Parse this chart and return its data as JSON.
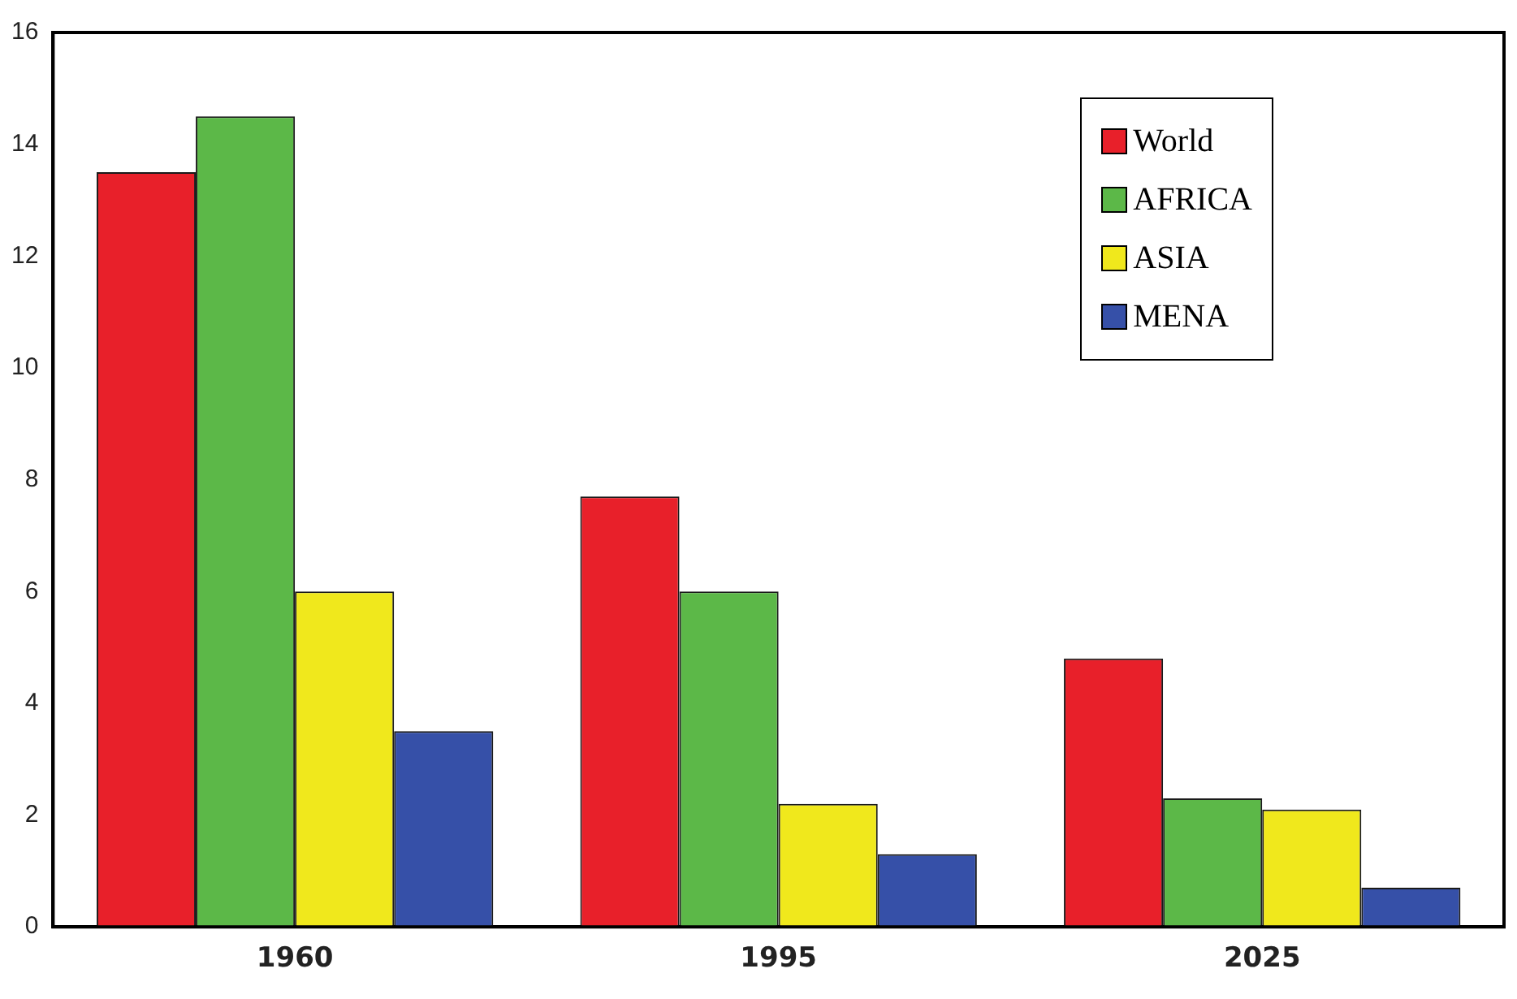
{
  "chart_data": {
    "type": "bar",
    "categories": [
      "1960",
      "1995",
      "2025"
    ],
    "series": [
      {
        "name": "World",
        "color": "#e8202a",
        "values": [
          13.5,
          7.7,
          4.8
        ]
      },
      {
        "name": "AFRICA",
        "color": "#5cb848",
        "values": [
          14.5,
          6.0,
          2.3
        ]
      },
      {
        "name": "ASIA",
        "color": "#f0e81c",
        "values": [
          6.0,
          2.2,
          2.1
        ]
      },
      {
        "name": "MENA",
        "color": "#3650a8",
        "values": [
          3.5,
          1.3,
          0.7
        ]
      }
    ],
    "ylim": [
      0,
      16
    ],
    "yticks": [
      0,
      2,
      4,
      6,
      8,
      10,
      12,
      14,
      16
    ],
    "grid": false,
    "legend": "top right"
  }
}
